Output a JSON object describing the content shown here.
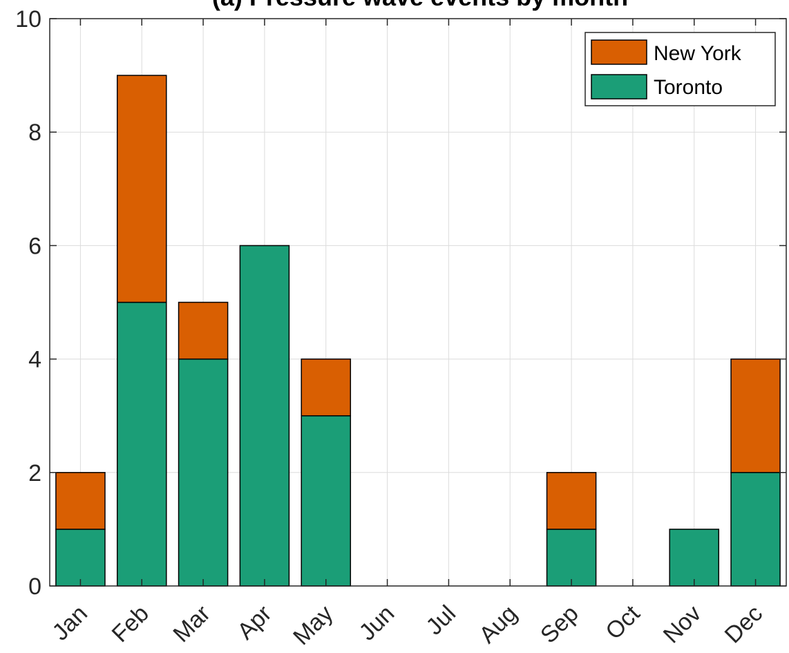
{
  "chart_data": {
    "type": "bar",
    "stacked": true,
    "title": "(a) Pressure wave events by month",
    "xlabel": "",
    "ylabel": "",
    "categories": [
      "Jan",
      "Feb",
      "Mar",
      "Apr",
      "May",
      "Jun",
      "Jul",
      "Aug",
      "Sep",
      "Oct",
      "Nov",
      "Dec"
    ],
    "series": [
      {
        "name": "Toronto",
        "values": [
          1,
          5,
          4,
          6,
          3,
          0,
          0,
          0,
          1,
          0,
          1,
          2
        ],
        "color": "#1b9e77"
      },
      {
        "name": "New York",
        "values": [
          1,
          4,
          1,
          0,
          1,
          0,
          0,
          0,
          1,
          0,
          0,
          2
        ],
        "color": "#d95f02"
      }
    ],
    "ylim": [
      0,
      10
    ],
    "yticks": [
      "0",
      "2",
      "4",
      "6",
      "8",
      "10"
    ],
    "grid": true,
    "legend_position": "top-right",
    "legend_order": [
      "New York",
      "Toronto"
    ]
  }
}
